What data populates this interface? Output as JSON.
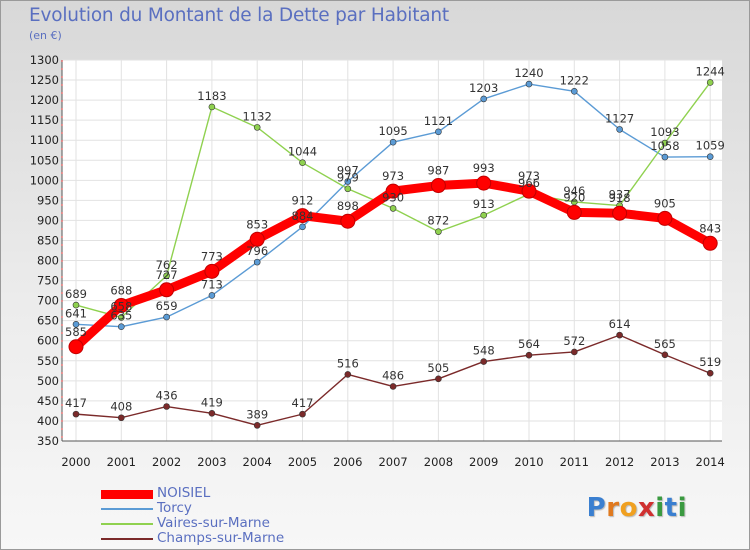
{
  "header": {
    "title": "Evolution du Montant de la Dette par Habitant",
    "subtitle": "(en €)"
  },
  "logo": {
    "letters": [
      "P",
      "r",
      "o",
      "x",
      "i",
      "t",
      "i"
    ],
    "colors": [
      "#3a7fd0",
      "#e07a20",
      "#f0a020",
      "#d03030",
      "#3a9a40",
      "#3a7fd0",
      "#3a9a40"
    ]
  },
  "chart_data": {
    "type": "line",
    "title": "Evolution du Montant de la Dette par Habitant",
    "subtitle": "(en €)",
    "xlabel": "",
    "ylabel": "",
    "categories": [
      "2000",
      "2001",
      "2002",
      "2003",
      "2004",
      "2005",
      "2006",
      "2007",
      "2008",
      "2009",
      "2010",
      "2011",
      "2012",
      "2013",
      "2014"
    ],
    "ylim": [
      350,
      1300
    ],
    "yticks": [
      350,
      400,
      450,
      500,
      550,
      600,
      650,
      700,
      750,
      800,
      850,
      900,
      950,
      1000,
      1050,
      1100,
      1150,
      1200,
      1250,
      1300
    ],
    "grid": true,
    "legend_position": "bottom-left",
    "series": [
      {
        "name": "NOISIEL",
        "color": "#ff0000",
        "emphasis": true,
        "values": [
          585,
          688,
          727,
          773,
          853,
          912,
          898,
          973,
          987,
          993,
          973,
          920,
          918,
          905,
          843
        ],
        "labels": [
          "585",
          "688",
          "727",
          "773",
          "853",
          "912",
          "898",
          "973",
          "987",
          "993",
          "973",
          "920",
          "918",
          "905",
          "843"
        ]
      },
      {
        "name": "Torcy",
        "color": "#5b9bd5",
        "emphasis": false,
        "values": [
          641,
          635,
          659,
          713,
          796,
          884,
          997,
          1095,
          1121,
          1203,
          1240,
          1222,
          1127,
          1058,
          1059
        ],
        "labels": [
          "641",
          "635",
          "659",
          "713",
          "796",
          "884",
          "997",
          "1095",
          "1121",
          "1203",
          "1240",
          "1222",
          "1127",
          "1058",
          "1059"
        ]
      },
      {
        "name": "Vaires-sur-Marne",
        "color": "#8fd14f",
        "emphasis": false,
        "values": [
          689,
          658,
          762,
          1183,
          1132,
          1044,
          979,
          930,
          872,
          913,
          966,
          946,
          937,
          1093,
          1244
        ],
        "labels": [
          "689",
          "658",
          "762",
          "1183",
          "1132",
          "1044",
          "979",
          "930",
          "872",
          "913",
          "966",
          "946",
          "937",
          "1093",
          "1244"
        ]
      },
      {
        "name": "Champs-sur-Marne",
        "color": "#7b2a2a",
        "emphasis": false,
        "values": [
          417,
          408,
          436,
          419,
          389,
          417,
          516,
          486,
          505,
          548,
          564,
          572,
          614,
          565,
          519
        ],
        "labels": [
          "417",
          "408",
          "436",
          "419",
          "389",
          "417",
          "516",
          "486",
          "505",
          "548",
          "564",
          "572",
          "614",
          "565",
          "519"
        ]
      }
    ]
  }
}
